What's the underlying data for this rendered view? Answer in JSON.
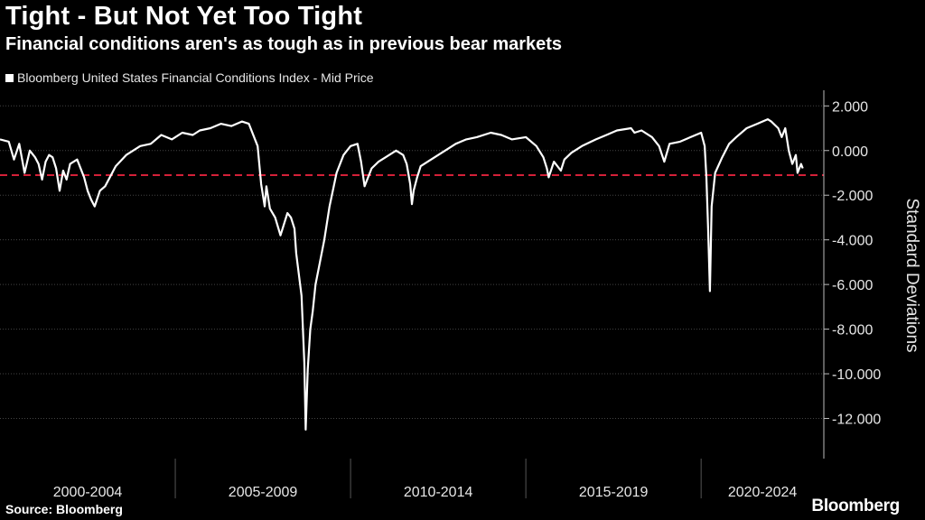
{
  "chart_data": {
    "type": "line",
    "title": "Tight - But Not Yet Too Tight",
    "subtitle": "Financial conditions aren's as tough as in previous bear markets",
    "series": [
      {
        "name": "Bloomberg United States Financial Conditions Index - Mid Price",
        "color": "#ffffff",
        "x": [
          2000.0,
          2000.25,
          2000.4,
          2000.55,
          2000.7,
          2000.85,
          2001.0,
          2001.1,
          2001.2,
          2001.3,
          2001.4,
          2001.5,
          2001.6,
          2001.7,
          2001.8,
          2001.9,
          2002.0,
          2002.2,
          2002.4,
          2002.5,
          2002.6,
          2002.7,
          2002.85,
          2003.0,
          2003.3,
          2003.6,
          2004.0,
          2004.3,
          2004.6,
          2004.9,
          2005.2,
          2005.5,
          2005.7,
          2006.0,
          2006.3,
          2006.6,
          2006.9,
          2007.1,
          2007.35,
          2007.45,
          2007.55,
          2007.6,
          2007.7,
          2007.85,
          2008.0,
          2008.2,
          2008.3,
          2008.4,
          2008.45,
          2008.6,
          2008.68,
          2008.72,
          2008.78,
          2008.85,
          2008.92,
          2009.0,
          2009.1,
          2009.25,
          2009.4,
          2009.6,
          2009.8,
          2010.0,
          2010.2,
          2010.3,
          2010.4,
          2010.5,
          2010.6,
          2010.8,
          2011.0,
          2011.3,
          2011.5,
          2011.6,
          2011.7,
          2011.75,
          2011.8,
          2011.9,
          2012.0,
          2012.2,
          2012.5,
          2012.8,
          2013.0,
          2013.3,
          2013.6,
          2014.0,
          2014.3,
          2014.6,
          2015.0,
          2015.3,
          2015.5,
          2015.6,
          2015.65,
          2015.8,
          2016.0,
          2016.1,
          2016.3,
          2016.6,
          2017.0,
          2017.3,
          2017.6,
          2018.0,
          2018.1,
          2018.3,
          2018.6,
          2018.8,
          2018.95,
          2019.1,
          2019.4,
          2019.7,
          2020.0,
          2020.1,
          2020.15,
          2020.2,
          2020.25,
          2020.3,
          2020.4,
          2020.6,
          2020.8,
          2021.0,
          2021.3,
          2021.6,
          2021.9,
          2022.0,
          2022.2,
          2022.3,
          2022.4,
          2022.5,
          2022.6,
          2022.7,
          2022.75,
          2022.85,
          2022.9
        ],
        "values": [
          0.5,
          0.4,
          -0.4,
          0.3,
          -1.0,
          0.0,
          -0.3,
          -0.6,
          -1.3,
          -0.5,
          -0.2,
          -0.3,
          -0.8,
          -1.8,
          -0.9,
          -1.3,
          -0.6,
          -0.4,
          -1.2,
          -1.8,
          -2.2,
          -2.5,
          -1.8,
          -1.6,
          -0.7,
          -0.2,
          0.2,
          0.3,
          0.7,
          0.5,
          0.8,
          0.7,
          0.9,
          1.0,
          1.2,
          1.1,
          1.3,
          1.2,
          0.2,
          -1.5,
          -2.5,
          -1.6,
          -2.6,
          -3.0,
          -3.8,
          -2.8,
          -3.0,
          -3.5,
          -4.6,
          -6.5,
          -9.5,
          -12.5,
          -9.8,
          -8.0,
          -7.2,
          -6.0,
          -5.2,
          -4.0,
          -2.5,
          -1.0,
          -0.2,
          0.2,
          0.3,
          -0.5,
          -1.6,
          -1.2,
          -0.8,
          -0.5,
          -0.3,
          0.0,
          -0.2,
          -0.6,
          -1.5,
          -2.4,
          -1.8,
          -1.2,
          -0.7,
          -0.5,
          -0.2,
          0.1,
          0.3,
          0.5,
          0.6,
          0.8,
          0.7,
          0.5,
          0.6,
          0.2,
          -0.3,
          -0.8,
          -1.2,
          -0.5,
          -0.9,
          -0.4,
          -0.1,
          0.2,
          0.5,
          0.7,
          0.9,
          1.0,
          0.8,
          0.9,
          0.6,
          0.2,
          -0.5,
          0.3,
          0.4,
          0.6,
          0.8,
          0.2,
          -1.2,
          -3.5,
          -6.3,
          -2.5,
          -1.0,
          -0.3,
          0.3,
          0.6,
          1.0,
          1.2,
          1.4,
          1.3,
          1.0,
          0.6,
          1.0,
          0.0,
          -0.6,
          -0.2,
          -1.0,
          -0.6,
          -0.8
        ]
      }
    ],
    "reference_line": {
      "value": -1.1,
      "color": "#d42038",
      "style": "dashed"
    },
    "y_ticks": [
      2,
      0,
      -2,
      -4,
      -6,
      -8,
      -10,
      -12
    ],
    "y_tick_labels": [
      "2.000",
      "0.000",
      "-2.000",
      "-4.000",
      "-6.000",
      "-8.000",
      "-10.000",
      "-12.000"
    ],
    "ylim": [
      -13.8,
      2.7
    ],
    "xlim": [
      2000,
      2023.5
    ],
    "x_groups": [
      {
        "label": "2000-2004",
        "start": 2000,
        "end": 2005
      },
      {
        "label": "2005-2009",
        "start": 2005,
        "end": 2010
      },
      {
        "label": "2010-2014",
        "start": 2010,
        "end": 2015
      },
      {
        "label": "2015-2019",
        "start": 2015,
        "end": 2020
      },
      {
        "label": "2020-2024",
        "start": 2020,
        "end": 2023.5
      }
    ],
    "ylabel": "Standard Deviations",
    "xlabel": "",
    "legend": [
      "Bloomberg United States Financial Conditions Index - Mid Price"
    ],
    "grid": true,
    "legend_position": "top-left"
  },
  "footer": {
    "source": "Source: Bloomberg",
    "brand": "Bloomberg"
  }
}
